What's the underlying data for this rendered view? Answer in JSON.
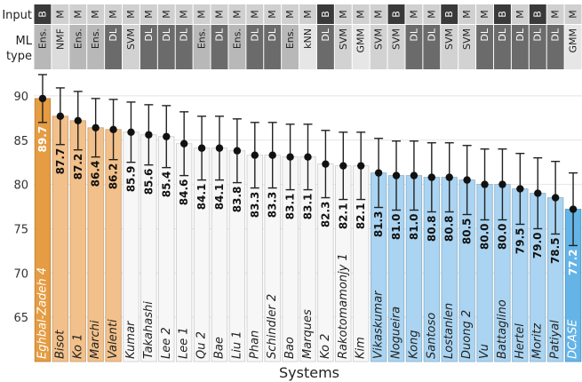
{
  "chart_data": {
    "type": "bar",
    "xlabel": "Systems",
    "ylim": [
      60,
      93
    ],
    "yticks": [
      65,
      70,
      75,
      80,
      85,
      90
    ],
    "grid": true,
    "row_labels": {
      "input": "Input",
      "type_line1": "ML",
      "type_line2": "type"
    },
    "input_colors": {
      "B": "#3a3a3a",
      "M": "#d0d0d0"
    },
    "type_colors": {
      "Ens.": "#b8b8b8",
      "NMF": "#dcdcdc",
      "DL": "#6b6b6b",
      "SVM": "#d2d2d2",
      "kNN": "#e6e6e6",
      "GMM": "#e6e6e6"
    },
    "group_colors": {
      "orange": "#f2c08a",
      "orange_top": "#e59c42",
      "white": "#f7f7f7",
      "blue": "#aad4f1",
      "blue_last": "#64b4e8"
    },
    "systems": [
      {
        "name": "Eghbal-Zadeh 4",
        "value": 89.7,
        "err": 2.7,
        "input": "B",
        "type": "Ens.",
        "group": "orange_top",
        "value_label": "89.7"
      },
      {
        "name": "Bisot",
        "value": 87.7,
        "err": 3.2,
        "input": "M",
        "type": "NMF",
        "group": "orange",
        "value_label": "87.7"
      },
      {
        "name": "Ko 1",
        "value": 87.2,
        "err": 3.3,
        "input": "M",
        "type": "Ens.",
        "group": "orange",
        "value_label": "87.2"
      },
      {
        "name": "Marchi",
        "value": 86.4,
        "err": 3.3,
        "input": "M",
        "type": "Ens.",
        "group": "orange",
        "value_label": "86.4"
      },
      {
        "name": "Valenti",
        "value": 86.2,
        "err": 3.4,
        "input": "M",
        "type": "DL",
        "group": "orange",
        "value_label": "86.2"
      },
      {
        "name": "Kumar",
        "value": 85.9,
        "err": 3.4,
        "input": "M",
        "type": "SVM",
        "group": "white",
        "value_label": "85.9"
      },
      {
        "name": "Takahashi",
        "value": 85.6,
        "err": 3.4,
        "input": "M",
        "type": "DL",
        "group": "white",
        "value_label": "85.6"
      },
      {
        "name": "Lee 2",
        "value": 85.4,
        "err": 3.5,
        "input": "M",
        "type": "DL",
        "group": "white",
        "value_label": "85.4"
      },
      {
        "name": "Lee 1",
        "value": 84.6,
        "err": 3.6,
        "input": "M",
        "type": "DL",
        "group": "white",
        "value_label": "84.6"
      },
      {
        "name": "Qu 2",
        "value": 84.1,
        "err": 3.6,
        "input": "M",
        "type": "Ens.",
        "group": "white",
        "value_label": "84.1"
      },
      {
        "name": "Bae",
        "value": 84.1,
        "err": 3.6,
        "input": "M",
        "type": "DL",
        "group": "white",
        "value_label": "84.1"
      },
      {
        "name": "Liu 1",
        "value": 83.8,
        "err": 3.6,
        "input": "M",
        "type": "Ens.",
        "group": "white",
        "value_label": "83.8"
      },
      {
        "name": "Phan",
        "value": 83.3,
        "err": 3.7,
        "input": "M",
        "type": "DL",
        "group": "white",
        "value_label": "83.3"
      },
      {
        "name": "Schindler 2",
        "value": 83.3,
        "err": 3.7,
        "input": "M",
        "type": "DL",
        "group": "white",
        "value_label": "83.3"
      },
      {
        "name": "Bao",
        "value": 83.1,
        "err": 3.7,
        "input": "M",
        "type": "Ens.",
        "group": "white",
        "value_label": "83.1"
      },
      {
        "name": "Marques",
        "value": 83.1,
        "err": 3.7,
        "input": "M",
        "type": "kNN",
        "group": "white",
        "value_label": "83.1"
      },
      {
        "name": "Ko 2",
        "value": 82.3,
        "err": 3.8,
        "input": "B",
        "type": "DL",
        "group": "white",
        "value_label": "82.3"
      },
      {
        "name": "Rakotomamonjy 1",
        "value": 82.1,
        "err": 3.8,
        "input": "M",
        "type": "SVM",
        "group": "white",
        "value_label": "82.1"
      },
      {
        "name": "Kim",
        "value": 82.1,
        "err": 3.8,
        "input": "M",
        "type": "GMM",
        "group": "white",
        "value_label": "82.1"
      },
      {
        "name": "Vikaskumar",
        "value": 81.3,
        "err": 3.9,
        "input": "M",
        "type": "SVM",
        "group": "blue",
        "value_label": "81.3"
      },
      {
        "name": "Nogueira",
        "value": 81.0,
        "err": 3.9,
        "input": "B",
        "type": "SVM",
        "group": "blue",
        "value_label": "81.0"
      },
      {
        "name": "Kong",
        "value": 81.0,
        "err": 3.9,
        "input": "M",
        "type": "DL",
        "group": "blue",
        "value_label": "81.0"
      },
      {
        "name": "Santoso",
        "value": 80.8,
        "err": 3.9,
        "input": "M",
        "type": "DL",
        "group": "blue",
        "value_label": "80.8"
      },
      {
        "name": "Lostanlen",
        "value": 80.8,
        "err": 3.9,
        "input": "B",
        "type": "SVM",
        "group": "blue",
        "value_label": "80.8"
      },
      {
        "name": "Duong 2",
        "value": 80.5,
        "err": 3.9,
        "input": "M",
        "type": "SVM",
        "group": "blue",
        "value_label": "80.5"
      },
      {
        "name": "Vu",
        "value": 80.0,
        "err": 4.0,
        "input": "M",
        "type": "DL",
        "group": "blue",
        "value_label": "80.0"
      },
      {
        "name": "Battaglino",
        "value": 80.0,
        "err": 4.0,
        "input": "B",
        "type": "DL",
        "group": "blue",
        "value_label": "80.0"
      },
      {
        "name": "Hertel",
        "value": 79.5,
        "err": 4.0,
        "input": "M",
        "type": "DL",
        "group": "blue",
        "value_label": "79.5"
      },
      {
        "name": "Moritz",
        "value": 79.0,
        "err": 4.0,
        "input": "B",
        "type": "DL",
        "group": "blue",
        "value_label": "79.0"
      },
      {
        "name": "Patiyal",
        "value": 78.5,
        "err": 4.1,
        "input": "M",
        "type": "DL",
        "group": "blue",
        "value_label": "78.5"
      },
      {
        "name": "DCASE",
        "value": 77.2,
        "err": 4.1,
        "input": "M",
        "type": "GMM",
        "group": "blue_last",
        "value_label": "77.2"
      }
    ]
  }
}
